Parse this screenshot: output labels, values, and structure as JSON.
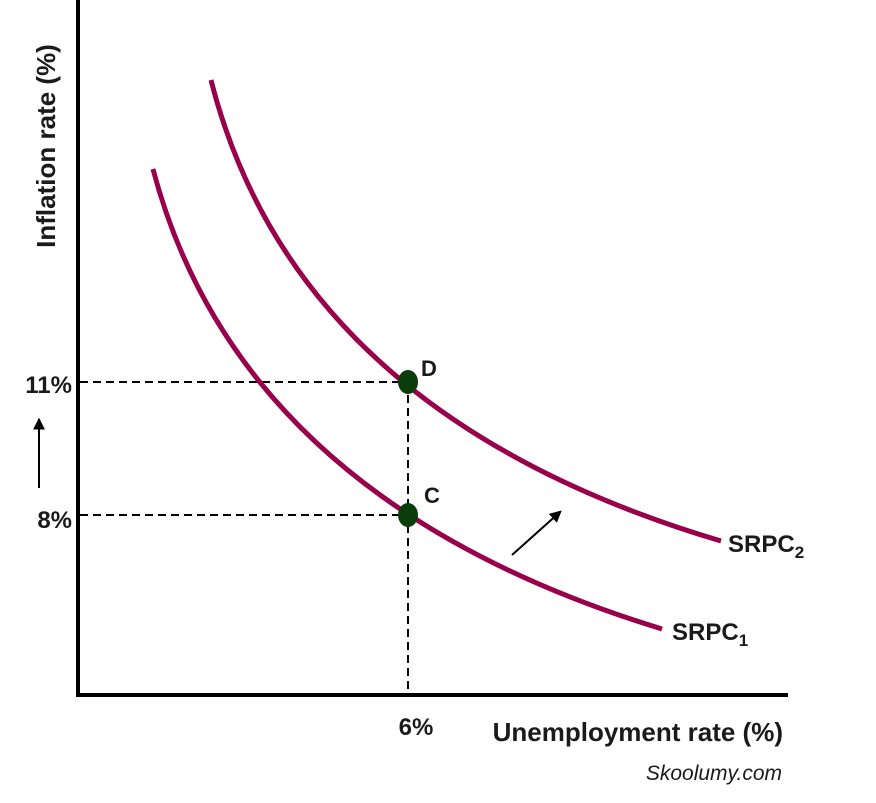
{
  "chart_data": {
    "type": "line",
    "xlabel": "Unemployment rate (%)",
    "ylabel": "Inflation rate (%)",
    "x_ticks": [
      {
        "value": 6,
        "label": "6%"
      }
    ],
    "y_ticks": [
      {
        "value": 8,
        "label": "8%"
      },
      {
        "value": 11,
        "label": "11%"
      }
    ],
    "series": [
      {
        "name": "SRPC",
        "subscript": "1",
        "color": "#99004c"
      },
      {
        "name": "SRPC",
        "subscript": "2",
        "color": "#99004c"
      }
    ],
    "points": [
      {
        "label": "C",
        "x": 6,
        "y": 8,
        "color": "#0b3d0b"
      },
      {
        "label": "D",
        "x": 6,
        "y": 11,
        "color": "#0b3d0b"
      }
    ],
    "annotations": [
      "shift arrow from SRPC1 to SRPC2",
      "upward arrow on inflation axis"
    ],
    "grid": false
  },
  "watermark": "Skoolumy.com"
}
